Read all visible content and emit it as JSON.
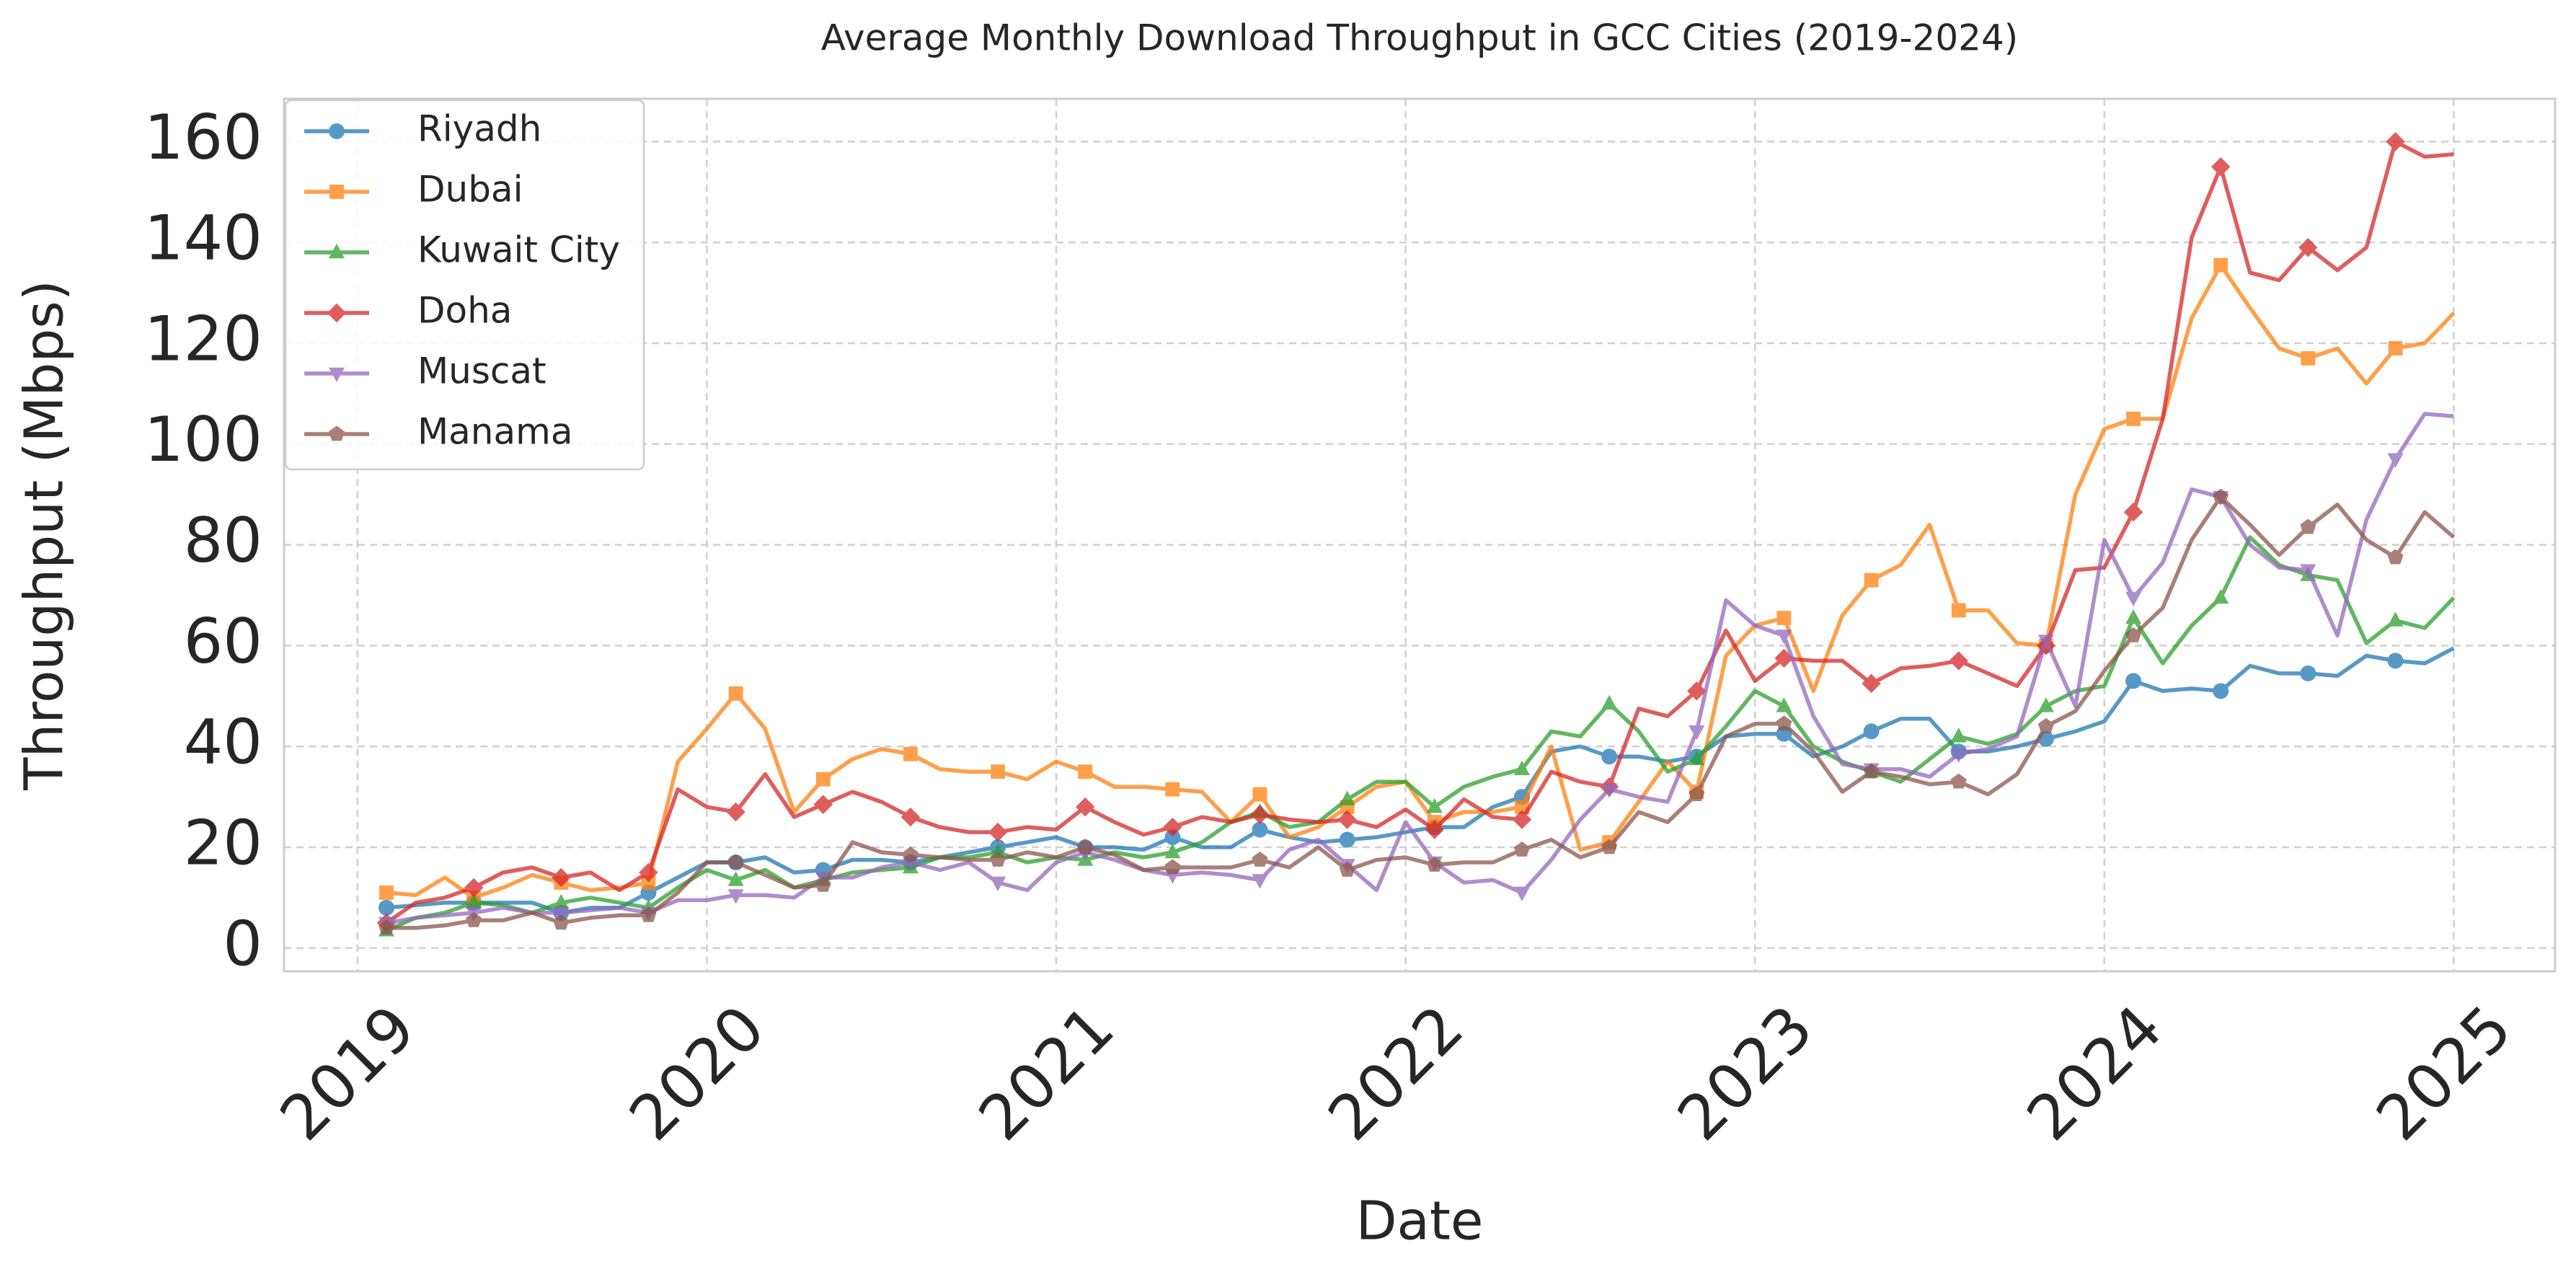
{
  "chart_data": {
    "type": "line",
    "title": "Average Monthly Download Throughput in GCC Cities (2019-2024)",
    "x_label": "Date",
    "y_label": "Throughput (Mbps)",
    "x": [
      2019.083,
      2019.167,
      2019.25,
      2019.333,
      2019.417,
      2019.5,
      2019.583,
      2019.667,
      2019.75,
      2019.833,
      2019.917,
      2020,
      2020.083,
      2020.167,
      2020.25,
      2020.333,
      2020.417,
      2020.5,
      2020.583,
      2020.667,
      2020.75,
      2020.833,
      2020.917,
      2021,
      2021.083,
      2021.167,
      2021.25,
      2021.333,
      2021.417,
      2021.5,
      2021.583,
      2021.667,
      2021.75,
      2021.833,
      2021.917,
      2022,
      2022.083,
      2022.167,
      2022.25,
      2022.333,
      2022.417,
      2022.5,
      2022.583,
      2022.667,
      2022.75,
      2022.833,
      2022.917,
      2023,
      2023.083,
      2023.167,
      2023.25,
      2023.333,
      2023.417,
      2023.5,
      2023.583,
      2023.667,
      2023.75,
      2023.833,
      2023.917,
      2024,
      2024.083,
      2024.167,
      2024.25,
      2024.333,
      2024.417,
      2024.5,
      2024.583,
      2024.667,
      2024.75,
      2024.833,
      2024.917,
      2025
    ],
    "series": [
      {
        "name": "Riyadh",
        "color": "#1f77b4",
        "marker": "circle",
        "values": [
          8,
          8.5,
          9,
          9,
          9,
          9,
          7,
          8,
          8,
          11,
          14,
          17,
          17,
          18,
          15,
          15.5,
          17.5,
          17.5,
          17,
          18,
          19,
          20,
          21,
          22,
          20,
          20,
          19.5,
          22,
          20,
          20,
          23.5,
          22,
          21,
          21.5,
          22,
          23,
          24,
          24,
          28,
          30,
          39,
          40,
          38,
          38,
          37,
          38,
          42,
          42.5,
          42.5,
          38,
          40,
          43,
          45.5,
          45.5,
          39,
          39,
          40,
          41.5,
          43,
          45,
          53,
          51,
          51.5,
          51,
          56,
          54.5,
          54.5,
          54,
          58,
          57,
          56.5,
          59.5
        ]
      },
      {
        "name": "Dubai",
        "color": "#ff7f0e",
        "marker": "square",
        "values": [
          11,
          10.5,
          14,
          10,
          12,
          14.5,
          13,
          11.5,
          12,
          13,
          37,
          43.5,
          50.5,
          43.5,
          27,
          33.5,
          37.5,
          39.5,
          38.5,
          35.5,
          35,
          35,
          33.5,
          37,
          35,
          32,
          32,
          31.5,
          31,
          25,
          30.5,
          22,
          24,
          28,
          32,
          33,
          25,
          27,
          27,
          28,
          40,
          19.5,
          21,
          29,
          37,
          31,
          58,
          64,
          65.5,
          51,
          66,
          73,
          76,
          84,
          67,
          67,
          60.5,
          60,
          90,
          103,
          105,
          105,
          125,
          135.5,
          127,
          119,
          117,
          119,
          112,
          119,
          120,
          126
        ]
      },
      {
        "name": "Kuwait City",
        "color": "#2ca02c",
        "marker": "triangle-up",
        "values": [
          3.5,
          6,
          7,
          9,
          8.5,
          7,
          9,
          10,
          9,
          8,
          12,
          15.5,
          13.5,
          15.5,
          12,
          13.5,
          15,
          15.5,
          16,
          18,
          18,
          19,
          17,
          18,
          17.5,
          19,
          18,
          19,
          21,
          25,
          27,
          24,
          25,
          29.5,
          33,
          33,
          28,
          32,
          34,
          35.5,
          43,
          42,
          48.5,
          43,
          35,
          37.5,
          44,
          51,
          48,
          40,
          37,
          35,
          33,
          37.5,
          42,
          40.5,
          42.5,
          48,
          51,
          52,
          65.5,
          56.5,
          64,
          69.5,
          81.5,
          76,
          74,
          73,
          60.5,
          65,
          63.5,
          69.5
        ]
      },
      {
        "name": "Doha",
        "color": "#d62728",
        "marker": "diamond",
        "values": [
          5,
          9,
          10,
          12,
          15,
          16,
          14,
          15,
          11.5,
          15,
          31.5,
          28,
          27,
          34.5,
          26,
          28.5,
          31,
          29,
          26,
          24,
          23,
          23,
          24,
          23.5,
          28,
          25,
          22.5,
          24,
          26,
          25,
          26.5,
          25.5,
          25,
          25.5,
          24,
          27.5,
          23.5,
          29.5,
          26,
          25.5,
          35,
          33,
          32,
          47.5,
          46,
          51,
          63,
          53,
          57.5,
          57,
          57,
          52.5,
          55.5,
          56,
          57,
          54.5,
          52,
          60,
          75,
          75.5,
          86.5,
          105,
          141,
          155,
          134,
          132.5,
          139,
          134.5,
          139,
          160,
          157,
          157.5
        ]
      },
      {
        "name": "Muscat",
        "color": "#9467bd",
        "marker": "triangle-down",
        "values": [
          5,
          6,
          6.5,
          7,
          8,
          7,
          7,
          7.5,
          8,
          7,
          9.5,
          9.5,
          10.5,
          10.5,
          10,
          14,
          14,
          16,
          17,
          15.5,
          17,
          13,
          11.5,
          17,
          19,
          17.5,
          15.5,
          14.5,
          15,
          14.5,
          13.5,
          19.5,
          21.5,
          16.5,
          11.5,
          25,
          17,
          13,
          13.5,
          11,
          17.5,
          25.5,
          31.5,
          30,
          29,
          43,
          69,
          64,
          62,
          46,
          36.5,
          35.5,
          35.5,
          34,
          38.5,
          39.5,
          42,
          61,
          48,
          81,
          69.5,
          76.5,
          91,
          89.5,
          80,
          75.5,
          75,
          62,
          85,
          97,
          106,
          105.5
        ]
      },
      {
        "name": "Manama",
        "color": "#8c564b",
        "marker": "pentagon",
        "values": [
          4,
          4,
          4.5,
          5.5,
          5.5,
          7,
          5,
          6,
          6.5,
          6.5,
          11,
          17,
          17,
          14.5,
          12,
          12.5,
          21,
          19,
          18.5,
          18,
          17.5,
          17.5,
          19,
          18,
          20,
          18.5,
          15.5,
          16,
          16,
          16,
          17.5,
          16,
          20,
          15.5,
          17.5,
          18,
          16.5,
          17,
          17,
          19.5,
          21.5,
          18,
          20,
          27,
          25,
          30.5,
          42,
          44.5,
          44.5,
          39,
          31,
          35,
          34,
          32.5,
          33,
          30.5,
          34.5,
          44,
          47,
          55,
          62,
          67.5,
          81,
          89.5,
          84,
          78,
          83.5,
          88,
          81,
          77.5,
          86.5,
          81.5
        ]
      }
    ],
    "marker_every": 3,
    "xlim": [
      2018.79,
      2025.29
    ],
    "xticks": [
      2019,
      2020,
      2021,
      2022,
      2023,
      2024,
      2025
    ],
    "ylim": [
      -4.6,
      168.5
    ],
    "yticks": [
      0,
      20,
      40,
      60,
      80,
      100,
      120,
      140,
      160
    ],
    "grid": true,
    "legend": "upper left"
  }
}
